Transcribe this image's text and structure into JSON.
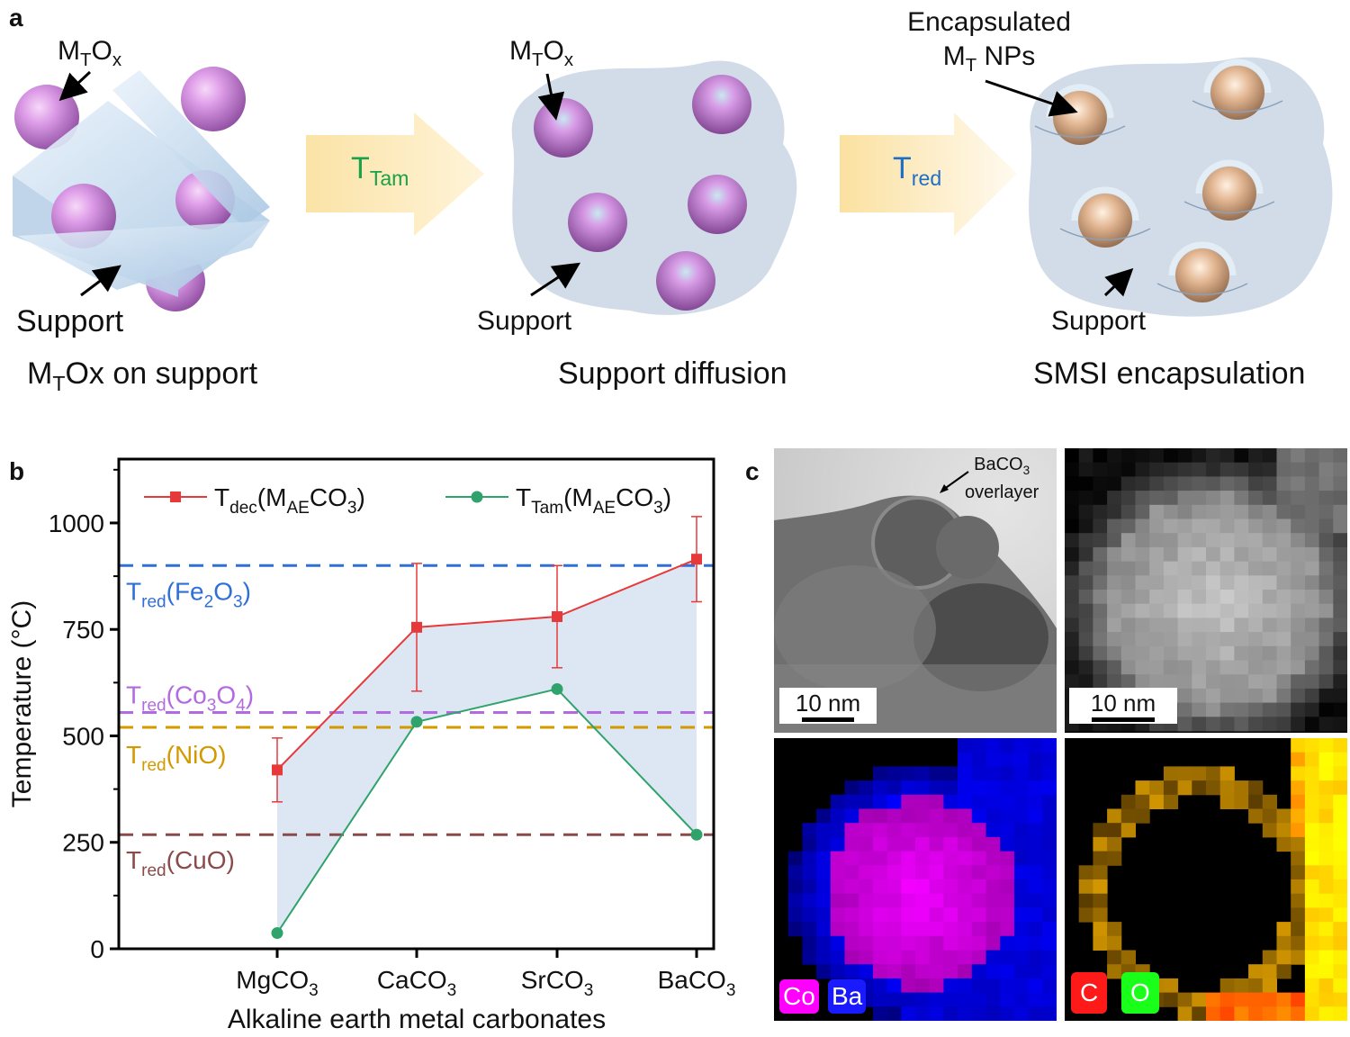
{
  "panel_a": {
    "letter": "a",
    "step1": {
      "oxide_label": "M",
      "oxide_sub": "T",
      "oxide_tail": "O",
      "oxide_x": "x",
      "support_label": "Support",
      "caption_pre": "M",
      "caption_sub": "T",
      "caption_post": "Ox on support"
    },
    "arrow1": {
      "label": "T",
      "label_sub": "Tam",
      "color": "#1aa14a"
    },
    "step2": {
      "oxide_label": "M",
      "oxide_sub": "T",
      "oxide_tail": "O",
      "oxide_x": "x",
      "support_label": "Support",
      "caption": "Support diffusion"
    },
    "arrow2": {
      "label": "T",
      "label_sub": "red",
      "color": "#1f6fc2"
    },
    "step3": {
      "np_label_line1": "Encapsulated",
      "np_label_pre": "M",
      "np_label_sub": "T",
      "np_label_post": " NPs",
      "support_label": "Support",
      "caption": "SMSI encapsulation"
    }
  },
  "panel_b": {
    "letter": "b",
    "chart_data": {
      "type": "line",
      "xlabel": "Alkaline earth metal carbonates",
      "ylabel": "Temperature (°C)",
      "ylim": [
        0,
        1150
      ],
      "yticks": [
        0,
        250,
        500,
        750,
        1000
      ],
      "categories": [
        "MgCO3",
        "CaCO3",
        "SrCO3",
        "BaCO3"
      ],
      "category_labels": [
        {
          "pre": "MgCO",
          "sub": "3"
        },
        {
          "pre": "CaCO",
          "sub": "3"
        },
        {
          "pre": "SrCO",
          "sub": "3"
        },
        {
          "pre": "BaCO",
          "sub": "3"
        }
      ],
      "series": [
        {
          "name": "Tdec(MAECO3)",
          "legend_pre": "T",
          "legend_sub": "dec",
          "legend_mid": "(M",
          "legend_sub2": "AE",
          "legend_tail": "CO",
          "legend_sub3": "3",
          "legend_end": ")",
          "color": "#e8393a",
          "marker": "square",
          "values": [
            420,
            755,
            780,
            915
          ],
          "errors": [
            75,
            150,
            120,
            100
          ]
        },
        {
          "name": "TTam(MAECO3)",
          "legend_pre": "T",
          "legend_sub": "Tam",
          "legend_mid": "(M",
          "legend_sub2": "AE",
          "legend_tail": "CO",
          "legend_sub3": "3",
          "legend_end": ")",
          "color": "#2fa36b",
          "marker": "circle",
          "values": [
            37,
            533,
            610,
            268
          ]
        }
      ],
      "reference_lines": [
        {
          "value": 900,
          "color": "#2f6fd6",
          "label_pre": "T",
          "label_sub": "red",
          "label_body": "(Fe",
          "label_sub2": "2",
          "label_mid": "O",
          "label_sub3": "3",
          "label_end": ")"
        },
        {
          "value": 555,
          "color": "#b36ae0",
          "label_pre": "T",
          "label_sub": "red",
          "label_body": "(Co",
          "label_sub2": "3",
          "label_mid": "O",
          "label_sub3": "4",
          "label_end": ")"
        },
        {
          "value": 520,
          "color": "#d29a00",
          "label_pre": "T",
          "label_sub": "red",
          "label_body": "(NiO)",
          "label_sub2": "",
          "label_mid": "",
          "label_sub3": "",
          "label_end": ""
        },
        {
          "value": 268,
          "color": "#8a4a4a",
          "label_pre": "T",
          "label_sub": "red",
          "label_body": "(CuO)",
          "label_sub2": "",
          "label_mid": "",
          "label_sub3": "",
          "label_end": ""
        }
      ],
      "fill_color": "#dbe6f2"
    }
  },
  "panel_c": {
    "letter": "c",
    "tem_annotation_line1": "BaCO",
    "tem_annotation_sub": "3",
    "tem_annotation_line2": "overlayer",
    "scalebar_label": "10 nm",
    "map1_legend": [
      "Co",
      "Ba"
    ],
    "map1_colors": [
      "#ff00ff",
      "#1a1aff"
    ],
    "map2_legend": [
      "C",
      "O"
    ],
    "map2_colors": [
      "#ff1a1a",
      "#1aff1a"
    ]
  }
}
